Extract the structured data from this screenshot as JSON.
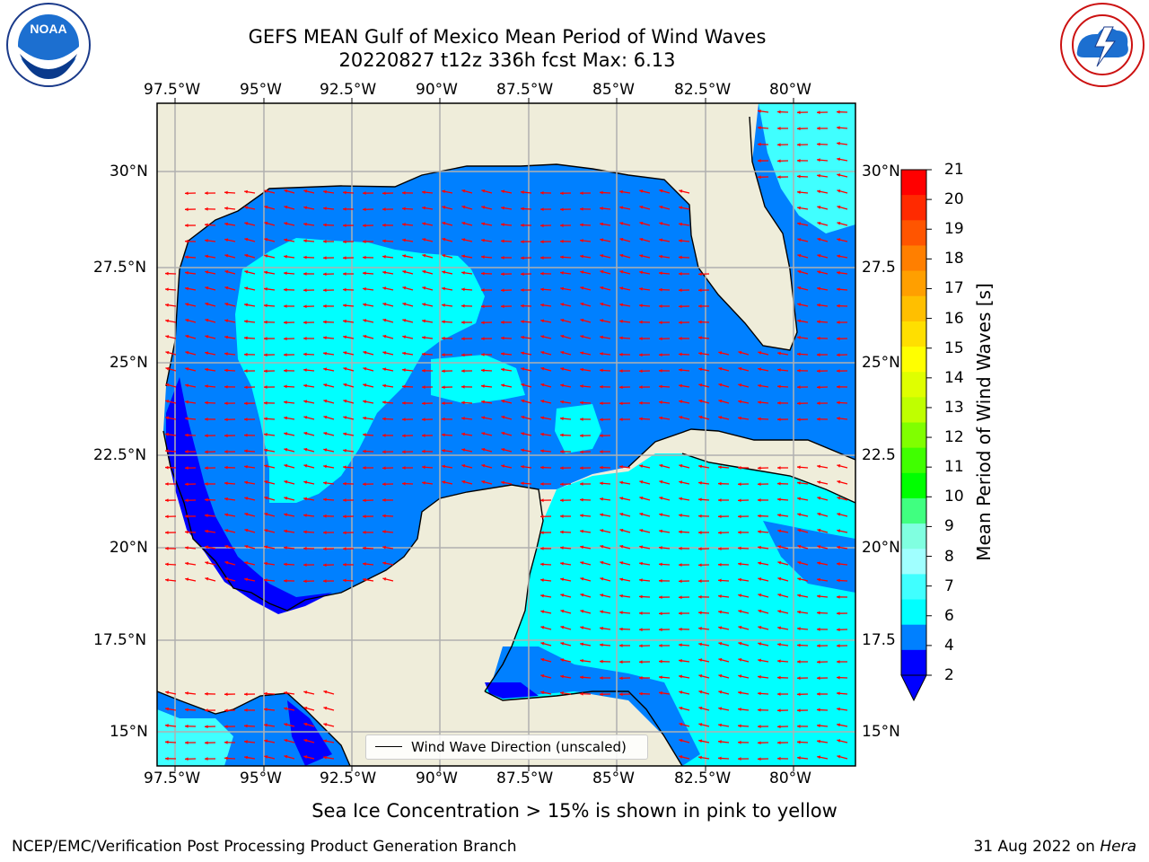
{
  "title": {
    "line1": "GEFS MEAN Gulf of Mexico Mean Period of Wind Waves",
    "line2": "20220827 t12z 336h fcst   Max: 6.13"
  },
  "map": {
    "lon_labels": [
      "97.5°W",
      "95°W",
      "92.5°W",
      "90°W",
      "87.5°W",
      "85°W",
      "82.5°W",
      "80°W"
    ],
    "lat_labels_left": [
      "30°N",
      "27.5°N",
      "25°N",
      "22.5°N",
      "20°N",
      "17.5°N",
      "15°N"
    ],
    "lat_labels_right": [
      "30°N",
      "27.5",
      "25°N",
      "22.5",
      "20°N",
      "17.5",
      "15°N"
    ],
    "legend_label": "Wind Wave Direction (unscaled)",
    "land_color": "#efedda",
    "arrow_color": "#ff0000"
  },
  "colorbar": {
    "title": "Mean Period of Wind Waves [s]",
    "ticks": [
      "21",
      "20",
      "19",
      "18",
      "17",
      "16",
      "15",
      "14",
      "13",
      "12",
      "11",
      "10",
      "9",
      "8",
      "7",
      "6",
      "4",
      "2"
    ],
    "colors": [
      "#ff0000",
      "#ff2a00",
      "#ff5500",
      "#ff7f00",
      "#ff9f00",
      "#ffbf00",
      "#ffdf00",
      "#ffff00",
      "#dfff00",
      "#bfff00",
      "#80ff00",
      "#40ff00",
      "#00ff00",
      "#40ff80",
      "#80ffe0",
      "#a0ffff",
      "#40ffff",
      "#00ffff",
      "#0080ff",
      "#0000ff"
    ]
  },
  "footnote": "Sea Ice Concentration > 15% is shown in pink to yellow",
  "credit": "NCEP/EMC/Verification Post Processing Product Generation Branch",
  "date": "31 Aug 2022 on",
  "host": "Hera",
  "logos": {
    "noaa": "NOAA",
    "nws": "NATIONAL WEATHER SERVICE"
  }
}
